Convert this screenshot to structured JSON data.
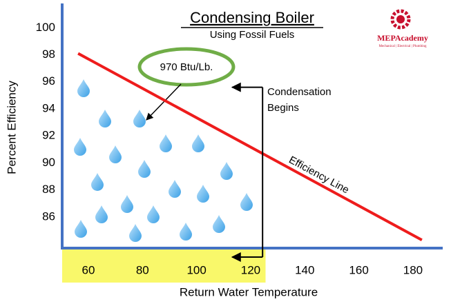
{
  "chart_data": {
    "type": "line",
    "title": "Condensing Boiler",
    "subtitle": "Using Fossil Fuels",
    "xlabel": "Return Water Temperature",
    "ylabel": "Percent Efficiency",
    "xlim": [
      50.3,
      191
    ],
    "ylim": [
      83.7,
      101.8
    ],
    "xticks": [
      60,
      80,
      100,
      120,
      140,
      160,
      180
    ],
    "yticks": [
      86,
      88,
      90,
      92,
      94,
      96,
      98,
      100
    ],
    "series": [
      {
        "name": "Efficiency Line",
        "color": "#ee1c1c",
        "x": [
          56.2,
          183.3
        ],
        "values": [
          98.1,
          84.3
        ]
      }
    ],
    "condensing_range": [
      50.3,
      125.5
    ],
    "condensation_point": {
      "x": 124.4,
      "y": 95.6
    },
    "annotations": {
      "latent_heat": "970 Btu/Lb.",
      "condensation": [
        "Condensation",
        "Begins"
      ]
    },
    "logo": {
      "name": "MEPAcademy",
      "tagline": "Mechanical | Electrical | Plumbing"
    }
  }
}
